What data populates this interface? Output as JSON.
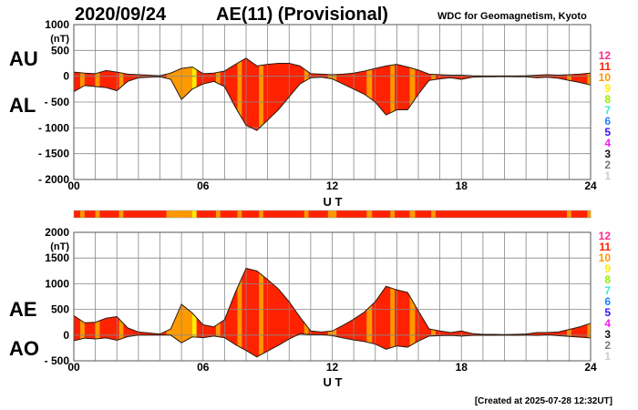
{
  "header": {
    "date": "2020/09/24",
    "title": "AE(11) (Provisional)",
    "institution": "WDC for Geomagnetism, Kyoto"
  },
  "footer": {
    "created": "[Created at 2025-07-28 12:32UT]"
  },
  "chart_data": [
    {
      "type": "area",
      "name": "AU/AL",
      "series_labels": [
        "AU",
        "AL"
      ],
      "unit": "(nT)",
      "xlabel": "U T",
      "xlim": [
        0,
        24
      ],
      "ylim": [
        -2000,
        1000
      ],
      "yticks": [
        1000,
        500,
        0,
        -500,
        -1000,
        -1500,
        -2000
      ],
      "ytick_labels": [
        "1000",
        "500",
        "0",
        "- 500",
        "- 1000",
        "- 1500",
        "- 2000"
      ],
      "xticks": [
        0,
        6,
        12,
        18,
        24
      ],
      "xtick_labels": [
        "00",
        "06",
        "12",
        "18",
        "24"
      ],
      "grid": true
    },
    {
      "type": "area",
      "name": "AE/AO",
      "series_labels": [
        "AE",
        "AO"
      ],
      "unit": "(nT)",
      "xlabel": "U T",
      "xlim": [
        0,
        24
      ],
      "ylim": [
        -500,
        2000
      ],
      "yticks": [
        2000,
        1500,
        1000,
        500,
        0,
        -500
      ],
      "ytick_labels": [
        "2000",
        "1500",
        "1000",
        "500",
        "0",
        "- 500"
      ],
      "xticks": [
        0,
        6,
        12,
        18,
        24
      ],
      "xtick_labels": [
        "00",
        "06",
        "12",
        "18",
        "24"
      ],
      "grid": true
    }
  ],
  "series": {
    "hours": [
      0,
      0.5,
      1,
      1.5,
      2,
      2.5,
      3,
      3.5,
      4,
      4.5,
      5,
      5.5,
      6,
      6.5,
      7,
      7.5,
      8,
      8.5,
      9,
      9.5,
      10,
      10.5,
      11,
      11.5,
      12,
      12.5,
      13,
      13.5,
      14,
      14.5,
      15,
      15.5,
      16,
      16.5,
      17,
      17.5,
      18,
      18.5,
      19,
      19.5,
      20,
      20.5,
      21,
      21.5,
      22,
      22.5,
      23,
      23.5,
      24
    ],
    "AU": [
      80,
      60,
      50,
      110,
      80,
      40,
      30,
      20,
      10,
      60,
      150,
      180,
      50,
      60,
      100,
      230,
      350,
      200,
      230,
      250,
      250,
      200,
      50,
      40,
      30,
      40,
      60,
      100,
      150,
      200,
      230,
      180,
      120,
      40,
      30,
      20,
      20,
      10,
      5,
      5,
      5,
      5,
      10,
      20,
      30,
      20,
      30,
      40,
      60
    ],
    "AL": [
      -300,
      -180,
      -200,
      -220,
      -280,
      -100,
      -30,
      -20,
      -10,
      -60,
      -450,
      -250,
      -150,
      -100,
      -200,
      -600,
      -950,
      -1050,
      -850,
      -650,
      -400,
      -150,
      -30,
      -20,
      -50,
      -150,
      -250,
      -350,
      -500,
      -750,
      -650,
      -650,
      -350,
      -80,
      -50,
      -30,
      -60,
      -20,
      -10,
      -10,
      -5,
      -10,
      -10,
      -30,
      -20,
      -40,
      -80,
      -120,
      -170
    ]
  },
  "activity_segments": [
    {
      "from": 0,
      "to": 0.3,
      "level": 11
    },
    {
      "from": 0.3,
      "to": 0.5,
      "level": 10
    },
    {
      "from": 0.5,
      "to": 1.0,
      "level": 11
    },
    {
      "from": 1.0,
      "to": 1.2,
      "level": 10
    },
    {
      "from": 1.2,
      "to": 2.1,
      "level": 11
    },
    {
      "from": 2.1,
      "to": 2.3,
      "level": 10
    },
    {
      "from": 2.3,
      "to": 4.3,
      "level": 11
    },
    {
      "from": 4.3,
      "to": 5.5,
      "level": 10
    },
    {
      "from": 5.5,
      "to": 5.7,
      "level": 9
    },
    {
      "from": 5.7,
      "to": 6.6,
      "level": 11
    },
    {
      "from": 6.6,
      "to": 6.8,
      "level": 10
    },
    {
      "from": 6.8,
      "to": 7.6,
      "level": 11
    },
    {
      "from": 7.6,
      "to": 7.8,
      "level": 10
    },
    {
      "from": 7.8,
      "to": 8.6,
      "level": 11
    },
    {
      "from": 8.6,
      "to": 8.8,
      "level": 10
    },
    {
      "from": 8.8,
      "to": 10.7,
      "level": 11
    },
    {
      "from": 10.7,
      "to": 10.9,
      "level": 10
    },
    {
      "from": 10.9,
      "to": 11.8,
      "level": 11
    },
    {
      "from": 11.8,
      "to": 12.2,
      "level": 10
    },
    {
      "from": 12.2,
      "to": 13.6,
      "level": 11
    },
    {
      "from": 13.6,
      "to": 13.85,
      "level": 10
    },
    {
      "from": 13.85,
      "to": 14.7,
      "level": 11
    },
    {
      "from": 14.7,
      "to": 14.9,
      "level": 10
    },
    {
      "from": 14.9,
      "to": 15.6,
      "level": 11
    },
    {
      "from": 15.6,
      "to": 15.85,
      "level": 10
    },
    {
      "from": 15.85,
      "to": 16.6,
      "level": 11
    },
    {
      "from": 16.6,
      "to": 16.8,
      "level": 10
    },
    {
      "from": 16.8,
      "to": 22.9,
      "level": 11
    },
    {
      "from": 22.9,
      "to": 23.1,
      "level": 10
    },
    {
      "from": 23.1,
      "to": 23.85,
      "level": 11
    },
    {
      "from": 23.85,
      "to": 24,
      "level": 10
    }
  ],
  "level_legend": [
    {
      "label": "12",
      "color": "#ff2a8a"
    },
    {
      "label": "11",
      "color": "#ff2200"
    },
    {
      "label": "10",
      "color": "#ff9900"
    },
    {
      "label": "9",
      "color": "#ffee00"
    },
    {
      "label": "8",
      "color": "#99ee00"
    },
    {
      "label": "7",
      "color": "#33eecc"
    },
    {
      "label": "6",
      "color": "#1e7fff"
    },
    {
      "label": "5",
      "color": "#3311ff"
    },
    {
      "label": "4",
      "color": "#ee22ee"
    },
    {
      "label": "3",
      "color": "#111111"
    },
    {
      "label": "2",
      "color": "#777777"
    },
    {
      "label": "1",
      "color": "#cccccc"
    }
  ]
}
